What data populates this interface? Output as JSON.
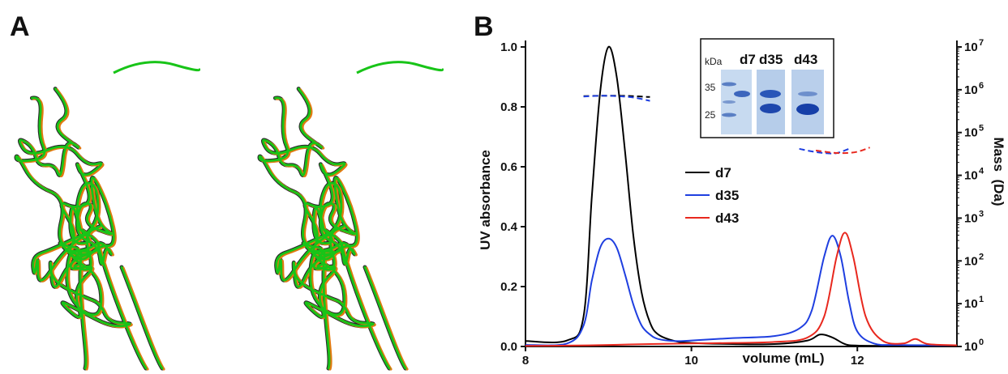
{
  "panels": {
    "a": {
      "label": "A"
    },
    "b": {
      "label": "B"
    }
  },
  "ribbon_colors": {
    "green": "#18c418",
    "orange": "#e07a10",
    "dark_edge": "#2a2a2a"
  },
  "chart_data": {
    "type": "line",
    "xlabel": "volume (mL)",
    "ylabel": "UV absorbance",
    "y2label": "Mass  (Da)",
    "xlim": [
      8,
      13.2
    ],
    "ylim": [
      0,
      1.0
    ],
    "y2lim_log10": [
      0,
      7
    ],
    "y2scale": "log",
    "x_ticks": [
      "8",
      "10",
      "12"
    ],
    "y_ticks": [
      "0.0",
      "0.2",
      "0.4",
      "0.6",
      "0.8",
      "1.0"
    ],
    "y2_ticks_exponents": [
      "0",
      "1",
      "2",
      "3",
      "4",
      "5",
      "6",
      "7"
    ],
    "y2_tick_base": "10",
    "legend_position": "center",
    "series": [
      {
        "name": "d7",
        "color": "#000000",
        "x": [
          8.0,
          8.5,
          8.7,
          8.8,
          8.9,
          9.0,
          9.1,
          9.2,
          9.3,
          9.4,
          9.5,
          9.6,
          9.8,
          10.0,
          10.5,
          11.0,
          11.4,
          11.55,
          11.7,
          11.85,
          12.0,
          12.5,
          13.2
        ],
        "y": [
          0.018,
          0.02,
          0.1,
          0.5,
          0.85,
          1.0,
          0.9,
          0.65,
          0.37,
          0.18,
          0.08,
          0.04,
          0.018,
          0.012,
          0.008,
          0.008,
          0.02,
          0.04,
          0.03,
          0.008,
          0.003,
          0.002,
          0.002
        ]
      },
      {
        "name": "d35",
        "color": "#1f3fe0",
        "x": [
          8.0,
          8.5,
          8.7,
          8.8,
          8.9,
          9.0,
          9.1,
          9.2,
          9.3,
          9.4,
          9.5,
          9.6,
          9.8,
          10.0,
          10.5,
          11.0,
          11.3,
          11.45,
          11.6,
          11.7,
          11.8,
          11.9,
          12.0,
          12.2,
          12.5,
          13.2
        ],
        "y": [
          0.005,
          0.01,
          0.07,
          0.22,
          0.33,
          0.36,
          0.33,
          0.24,
          0.14,
          0.07,
          0.04,
          0.025,
          0.018,
          0.02,
          0.028,
          0.035,
          0.06,
          0.12,
          0.3,
          0.37,
          0.3,
          0.15,
          0.05,
          0.01,
          0.005,
          0.004
        ]
      },
      {
        "name": "d43",
        "color": "#e8281e",
        "x": [
          8.0,
          8.5,
          9.0,
          9.5,
          10.0,
          10.5,
          11.0,
          11.4,
          11.6,
          11.75,
          11.85,
          11.95,
          12.1,
          12.3,
          12.55,
          12.7,
          12.85,
          13.2
        ],
        "y": [
          0.002,
          0.003,
          0.005,
          0.008,
          0.01,
          0.012,
          0.015,
          0.03,
          0.1,
          0.3,
          0.38,
          0.3,
          0.1,
          0.02,
          0.01,
          0.025,
          0.008,
          0.004
        ]
      }
    ],
    "mass_traces_log10": [
      {
        "series": "d7",
        "x": [
          8.7,
          8.9,
          9.1,
          9.3,
          9.5
        ],
        "y": [
          5.85,
          5.86,
          5.86,
          5.85,
          5.83
        ]
      },
      {
        "series": "d35",
        "x": [
          8.7,
          8.9,
          9.1,
          9.3,
          9.5
        ],
        "y": [
          5.84,
          5.86,
          5.85,
          5.82,
          5.74
        ]
      },
      {
        "series": "d35",
        "x": [
          11.3,
          11.45,
          11.6,
          11.75,
          11.9
        ],
        "y": [
          4.62,
          4.56,
          4.52,
          4.52,
          4.62
        ]
      },
      {
        "series": "d43",
        "x": [
          11.5,
          11.7,
          11.85,
          12.0,
          12.15
        ],
        "y": [
          4.58,
          4.53,
          4.52,
          4.55,
          4.65
        ]
      }
    ]
  },
  "inset_gel": {
    "unit_label": "kDa",
    "lane_labels": [
      "d7",
      "d35",
      "d43"
    ],
    "marker_labels": [
      "35",
      "25"
    ]
  }
}
